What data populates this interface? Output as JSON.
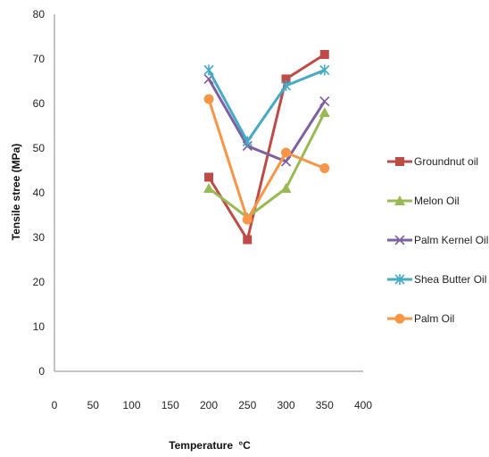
{
  "chart_data": {
    "type": "line",
    "title": "",
    "xlabel": "Temperature",
    "xlabel_unit": "°C",
    "ylabel": "Tensile stree (MPa)",
    "xlim": [
      0,
      400
    ],
    "ylim": [
      0,
      80
    ],
    "xticks": [
      0,
      50,
      100,
      150,
      200,
      250,
      300,
      350,
      400
    ],
    "yticks": [
      0,
      10,
      20,
      30,
      40,
      50,
      60,
      70,
      80
    ],
    "grid": false,
    "legend_position": "right",
    "x": [
      200,
      250,
      300,
      350
    ],
    "series": [
      {
        "name": "Groundnut oil",
        "values": [
          43.5,
          29.5,
          65.5,
          71
        ],
        "color": "#BE4B48",
        "marker": "square"
      },
      {
        "name": "Melon Oil",
        "values": [
          41,
          34.5,
          41,
          58
        ],
        "color": "#98B954",
        "marker": "triangle"
      },
      {
        "name": "Palm Kernel Oil",
        "values": [
          65.5,
          50.5,
          47,
          60.5
        ],
        "color": "#7D60A0",
        "marker": "x"
      },
      {
        "name": "Shea Butter Oil",
        "values": [
          67.5,
          51.5,
          64,
          67.5
        ],
        "color": "#46AAC5",
        "marker": "star"
      },
      {
        "name": "Palm Oil",
        "values": [
          61,
          34,
          49,
          45.5
        ],
        "color": "#F79646",
        "marker": "circle"
      }
    ]
  }
}
